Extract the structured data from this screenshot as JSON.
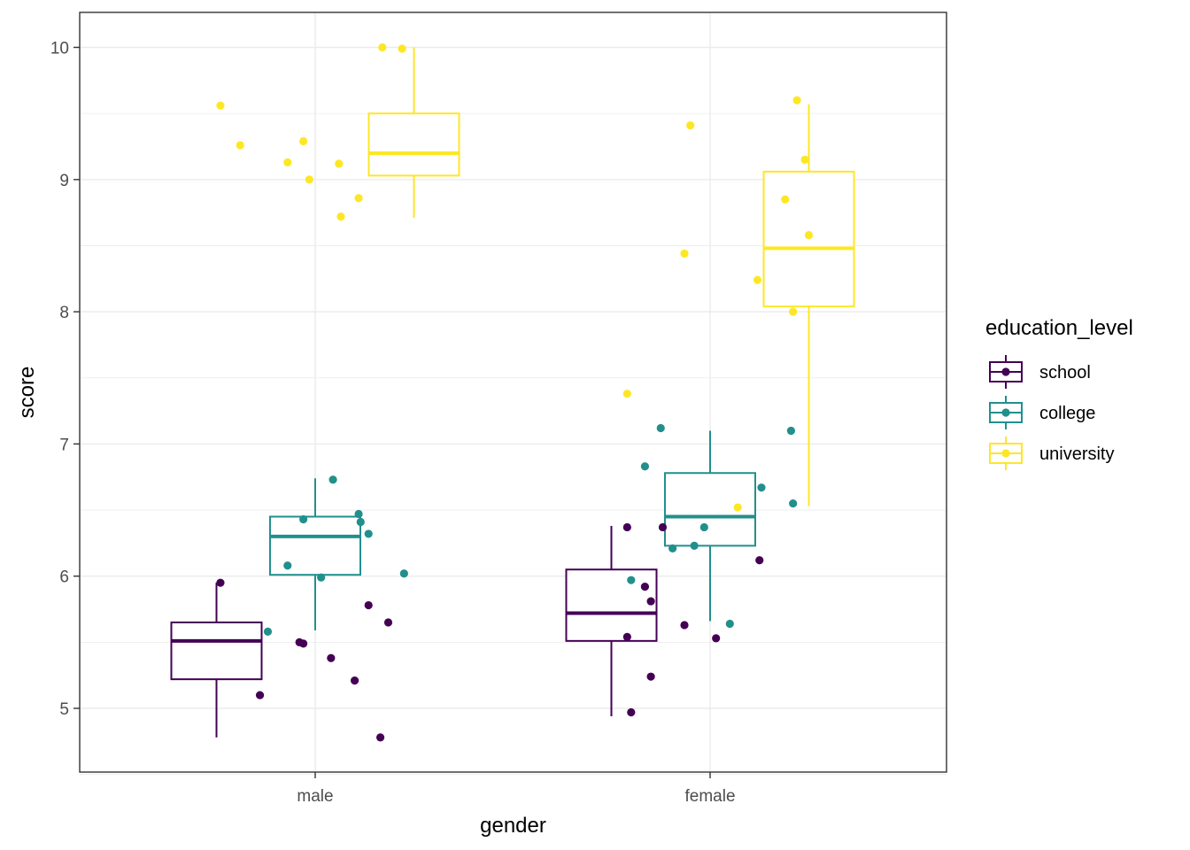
{
  "chart_data": {
    "type": "boxplot",
    "title": "",
    "xlabel": "gender",
    "ylabel": "score",
    "categories": [
      "male",
      "female"
    ],
    "ylim": [
      4.5,
      10.25
    ],
    "yticks": [
      "5",
      "6",
      "7",
      "8",
      "9",
      "10"
    ],
    "ytick_values": [
      5,
      6,
      7,
      8,
      9,
      10
    ],
    "grid": true,
    "legend": {
      "title": "education_level",
      "position": "right",
      "entries": [
        {
          "name": "school",
          "color": "#440154"
        },
        {
          "name": "college",
          "color": "#21908C"
        },
        {
          "name": "university",
          "color": "#FDE725"
        }
      ]
    },
    "series": [
      {
        "name": "school",
        "color": "#440154",
        "boxes": [
          {
            "category": "male",
            "whisker_low": 4.78,
            "q1": 5.22,
            "median": 5.51,
            "q3": 5.65,
            "whisker_high": 5.95
          },
          {
            "category": "female",
            "whisker_low": 4.94,
            "q1": 5.51,
            "median": 5.72,
            "q3": 6.05,
            "whisker_high": 6.38
          }
        ],
        "points": [
          {
            "category": "male",
            "offset": -0.24,
            "value": 5.95
          },
          {
            "category": "male",
            "offset": -0.14,
            "value": 5.1
          },
          {
            "category": "male",
            "offset": -0.04,
            "value": 5.5
          },
          {
            "category": "male",
            "offset": -0.03,
            "value": 5.49
          },
          {
            "category": "male",
            "offset": 0.04,
            "value": 5.38
          },
          {
            "category": "male",
            "offset": 0.1,
            "value": 5.21
          },
          {
            "category": "male",
            "offset": 0.135,
            "value": 5.78
          },
          {
            "category": "male",
            "offset": 0.165,
            "value": 4.78
          },
          {
            "category": "male",
            "offset": 0.185,
            "value": 5.65
          },
          {
            "category": "female",
            "offset": -0.21,
            "value": 6.37
          },
          {
            "category": "female",
            "offset": -0.21,
            "value": 5.54
          },
          {
            "category": "female",
            "offset": -0.2,
            "value": 4.97
          },
          {
            "category": "female",
            "offset": -0.165,
            "value": 5.92
          },
          {
            "category": "female",
            "offset": -0.15,
            "value": 5.81
          },
          {
            "category": "female",
            "offset": -0.15,
            "value": 5.24
          },
          {
            "category": "female",
            "offset": -0.12,
            "value": 6.37
          },
          {
            "category": "female",
            "offset": -0.065,
            "value": 5.63
          },
          {
            "category": "female",
            "offset": 0.015,
            "value": 5.53
          },
          {
            "category": "female",
            "offset": 0.125,
            "value": 6.12
          }
        ]
      },
      {
        "name": "college",
        "color": "#21908C",
        "boxes": [
          {
            "category": "male",
            "whisker_low": 5.59,
            "q1": 6.01,
            "median": 6.3,
            "q3": 6.45,
            "whisker_high": 6.74
          },
          {
            "category": "female",
            "whisker_low": 5.66,
            "q1": 6.23,
            "median": 6.45,
            "q3": 6.78,
            "whisker_high": 7.1
          }
        ],
        "points": [
          {
            "category": "male",
            "offset": -0.12,
            "value": 5.58
          },
          {
            "category": "male",
            "offset": -0.07,
            "value": 6.08
          },
          {
            "category": "male",
            "offset": -0.03,
            "value": 6.43
          },
          {
            "category": "male",
            "offset": 0.015,
            "value": 5.99
          },
          {
            "category": "male",
            "offset": 0.045,
            "value": 6.73
          },
          {
            "category": "male",
            "offset": 0.11,
            "value": 6.47
          },
          {
            "category": "male",
            "offset": 0.115,
            "value": 6.41
          },
          {
            "category": "male",
            "offset": 0.135,
            "value": 6.32
          },
          {
            "category": "male",
            "offset": 0.225,
            "value": 6.02
          },
          {
            "category": "female",
            "offset": -0.2,
            "value": 5.97
          },
          {
            "category": "female",
            "offset": -0.165,
            "value": 6.83
          },
          {
            "category": "female",
            "offset": -0.125,
            "value": 7.12
          },
          {
            "category": "female",
            "offset": -0.095,
            "value": 6.21
          },
          {
            "category": "female",
            "offset": -0.04,
            "value": 6.23
          },
          {
            "category": "female",
            "offset": -0.015,
            "value": 6.37
          },
          {
            "category": "female",
            "offset": 0.05,
            "value": 5.64
          },
          {
            "category": "female",
            "offset": 0.13,
            "value": 6.67
          },
          {
            "category": "female",
            "offset": 0.205,
            "value": 7.1
          },
          {
            "category": "female",
            "offset": 0.21,
            "value": 6.55
          }
        ]
      },
      {
        "name": "university",
        "color": "#FDE725",
        "boxes": [
          {
            "category": "male",
            "whisker_low": 8.71,
            "q1": 9.03,
            "median": 9.2,
            "q3": 9.5,
            "whisker_high": 10.0
          },
          {
            "category": "female",
            "whisker_low": 6.53,
            "q1": 8.04,
            "median": 8.48,
            "q3": 9.06,
            "whisker_high": 9.57
          }
        ],
        "points": [
          {
            "category": "male",
            "offset": -0.24,
            "value": 9.56
          },
          {
            "category": "male",
            "offset": -0.19,
            "value": 9.26
          },
          {
            "category": "male",
            "offset": -0.07,
            "value": 9.13
          },
          {
            "category": "male",
            "offset": -0.03,
            "value": 9.29
          },
          {
            "category": "male",
            "offset": -0.015,
            "value": 9.0
          },
          {
            "category": "male",
            "offset": 0.06,
            "value": 9.12
          },
          {
            "category": "male",
            "offset": 0.065,
            "value": 8.72
          },
          {
            "category": "male",
            "offset": 0.11,
            "value": 8.86
          },
          {
            "category": "male",
            "offset": 0.17,
            "value": 10.0
          },
          {
            "category": "male",
            "offset": 0.22,
            "value": 9.99
          },
          {
            "category": "female",
            "offset": -0.21,
            "value": 7.38
          },
          {
            "category": "female",
            "offset": -0.065,
            "value": 8.44
          },
          {
            "category": "female",
            "offset": -0.05,
            "value": 9.41
          },
          {
            "category": "female",
            "offset": 0.07,
            "value": 6.52
          },
          {
            "category": "female",
            "offset": 0.12,
            "value": 8.24
          },
          {
            "category": "female",
            "offset": 0.19,
            "value": 8.85
          },
          {
            "category": "female",
            "offset": 0.21,
            "value": 8.0
          },
          {
            "category": "female",
            "offset": 0.22,
            "value": 9.6
          },
          {
            "category": "female",
            "offset": 0.24,
            "value": 9.15
          },
          {
            "category": "female",
            "offset": 0.25,
            "value": 8.58
          }
        ]
      }
    ]
  }
}
